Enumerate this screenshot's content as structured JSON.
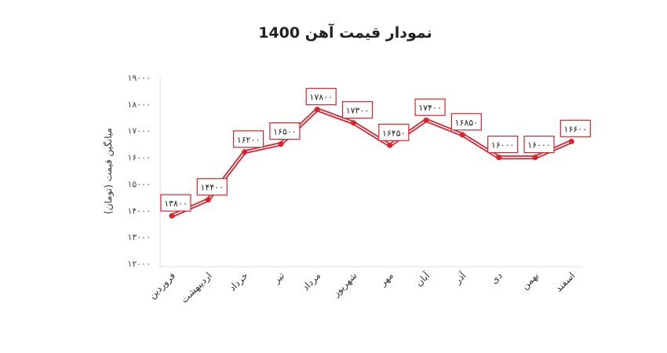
{
  "chart_data": {
    "type": "line",
    "title": "نمودار قیمت آهن 1400",
    "xlabel": "",
    "ylabel": "میانگین قیمت (تومان)",
    "ylim": [
      12000,
      19000
    ],
    "yticks": [
      12000,
      13000,
      14000,
      15000,
      16000,
      17000,
      18000,
      19000
    ],
    "ytick_labels": [
      "۱۲۰۰۰",
      "۱۳۰۰۰",
      "۱۴۰۰۰",
      "۱۵۰۰۰",
      "۱۶۰۰۰",
      "۱۷۰۰۰",
      "۱۸۰۰۰",
      "۱۹۰۰۰"
    ],
    "categories": [
      "فروردین",
      "اردیبهشت",
      "خرداد",
      "تیر",
      "مرداد",
      "شهریور",
      "مهر",
      "آبان",
      "آذر",
      "دی",
      "بهمن",
      "اسفند"
    ],
    "series": [
      {
        "values": [
          13800,
          14400,
          16200,
          16500,
          17800,
          17300,
          16450,
          17400,
          16850,
          16000,
          16000,
          16600
        ],
        "labels": [
          "۱۳۸۰۰",
          "۱۴۴۰۰",
          "۱۶۲۰۰",
          "۱۶۵۰۰",
          "۱۷۸۰۰",
          "۱۷۳۰۰",
          "۱۶۴۵۰",
          "۱۷۴۰۰",
          "۱۶۸۵۰",
          "۱۶۰۰۰",
          "۱۶۰۰۰",
          "۱۶۶۰۰"
        ]
      }
    ],
    "colors": {
      "line": "#d9232e",
      "label_border": "#d9232e"
    },
    "grid": false,
    "legend": "none"
  }
}
